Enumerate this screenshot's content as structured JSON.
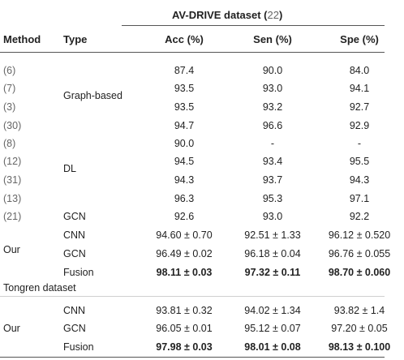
{
  "title": {
    "text": "AV-DRIVE dataset (",
    "ref": "22",
    "close": ")"
  },
  "header": {
    "method": "Method",
    "type": "Type",
    "acc": "Acc (%)",
    "sen": "Sen (%)",
    "spe": "Spe (%)"
  },
  "rows": [
    {
      "method": "(6)",
      "type": "",
      "acc": "87.4",
      "sen": "90.0",
      "spe": "84.0"
    },
    {
      "method": "(7)",
      "type": "",
      "acc": "93.5",
      "sen": "93.0",
      "spe": "94.1"
    },
    {
      "method": "(3)",
      "type": "",
      "acc": "93.5",
      "sen": "93.2",
      "spe": "92.7"
    },
    {
      "method": "(30)",
      "type": "",
      "acc": "94.7",
      "sen": "96.6",
      "spe": "92.9"
    },
    {
      "method": "(8)",
      "type": "",
      "acc": "90.0",
      "sen": "-",
      "spe": "-"
    },
    {
      "method": "(12)",
      "type": "",
      "acc": "94.5",
      "sen": "93.4",
      "spe": "95.5"
    },
    {
      "method": "(31)",
      "type": "",
      "acc": "94.3",
      "sen": "93.7",
      "spe": "94.3"
    },
    {
      "method": "(13)",
      "type": "",
      "acc": "96.3",
      "sen": "95.3",
      "spe": "97.1"
    },
    {
      "method": "(21)",
      "type": "GCN",
      "acc": "92.6",
      "sen": "93.0",
      "spe": "92.2"
    },
    {
      "method": "",
      "type": "CNN",
      "acc": "94.60 ± 0.70",
      "sen": "92.51 ± 1.33",
      "spe": "96.12 ± 0.520"
    },
    {
      "method": "",
      "type": "GCN",
      "acc": "96.49 ± 0.02",
      "sen": "96.18 ± 0.04",
      "spe": "96.76 ± 0.055"
    },
    {
      "method": "",
      "type": "Fusion",
      "acc": "98.11 ± 0.03",
      "sen": "97.32 ± 0.11",
      "spe": "98.70 ± 0.060"
    },
    {
      "method": "",
      "type": "CNN",
      "acc": "93.81 ± 0.32",
      "sen": "94.02 ± 1.34",
      "spe": "93.82 ± 1.4"
    },
    {
      "method": "",
      "type": "GCN",
      "acc": "96.05 ± 0.01",
      "sen": "95.12 ± 0.07",
      "spe": "97.20 ± 0.05"
    },
    {
      "method": "",
      "type": "Fusion",
      "acc": "97.98 ± 0.03",
      "sen": "98.01 ± 0.08",
      "spe": "98.13 ± 0.100"
    }
  ],
  "groups": {
    "graph": "Graph-based",
    "dl": "DL",
    "our1": "Our",
    "our2": "Our"
  },
  "section2": "Tongren dataset"
}
